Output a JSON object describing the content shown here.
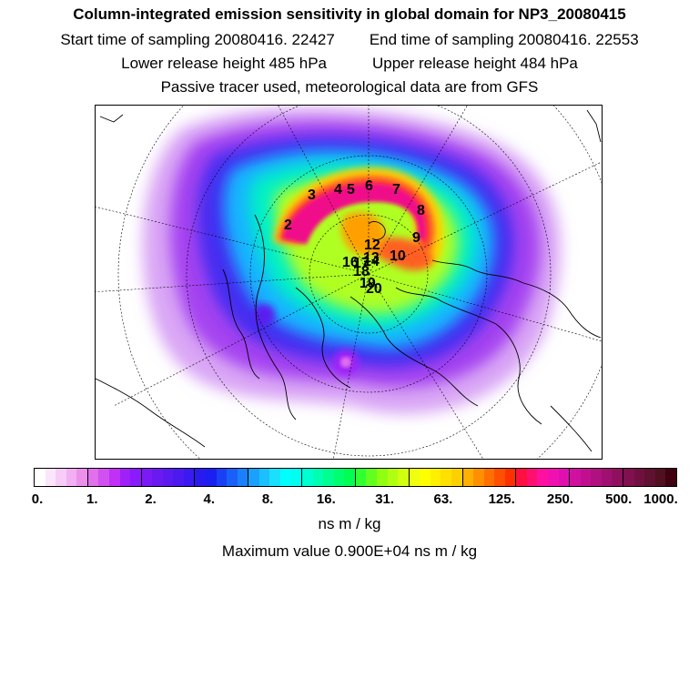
{
  "header": {
    "title": "Column-integrated emission sensitivity in global domain for NP3_20080415",
    "start_time": "Start time of sampling 20080416. 22427",
    "end_time": "End time of sampling 20080416. 22553",
    "lower_release": "Lower release height  485 hPa",
    "upper_release": "Upper release height  484 hPa",
    "tracer_note": "Passive tracer used, meteorological data are from GFS"
  },
  "map": {
    "projection": "polar-stereographic",
    "point_labels": [
      "2",
      "3",
      "4",
      "5",
      "6",
      "7",
      "8",
      "9",
      "10",
      "12",
      "13",
      "14",
      "16",
      "17",
      "18",
      "19",
      "20"
    ]
  },
  "colorbar": {
    "tick_labels": [
      "0.",
      "1.",
      "2.",
      "4.",
      "8.",
      "16.",
      "31.",
      "63.",
      "125.",
      "250.",
      "500.",
      "1000."
    ],
    "colors": [
      "#ffffff",
      "#fbe6fb",
      "#f7ccf7",
      "#f2b0f2",
      "#ec90ec",
      "#e070ec",
      "#d050f0",
      "#c030f5",
      "#a020f8",
      "#8a1aff",
      "#7a1af5",
      "#6a1af0",
      "#5a1af0",
      "#4a1af0",
      "#3a1af0",
      "#2a1af0",
      "#1a20f0",
      "#1a40f5",
      "#1a60f8",
      "#1a80ff",
      "#1aa0ff",
      "#1ac0ff",
      "#1ae0ff",
      "#00ffff",
      "#00fff0",
      "#00ffd0",
      "#00ffb0",
      "#00ff90",
      "#00ff70",
      "#00ff50",
      "#30ff30",
      "#60ff20",
      "#90ff10",
      "#b0ff10",
      "#d0ff10",
      "#f0ff10",
      "#ffff00",
      "#fff000",
      "#ffe000",
      "#ffd000",
      "#ffb000",
      "#ff9000",
      "#ff7000",
      "#ff5000",
      "#ff3000",
      "#ff1040",
      "#ff1070",
      "#ff10a0",
      "#f010b0",
      "#e010b0",
      "#d010a0",
      "#c01090",
      "#b01080",
      "#a01070",
      "#901060",
      "#801050",
      "#701040",
      "#601030",
      "#501020",
      "#400010"
    ],
    "units": "ns m / kg"
  },
  "maximum": "Maximum value  0.900E+04 ns m / kg",
  "colors": {
    "frame": "#000000",
    "background": "#ffffff"
  }
}
